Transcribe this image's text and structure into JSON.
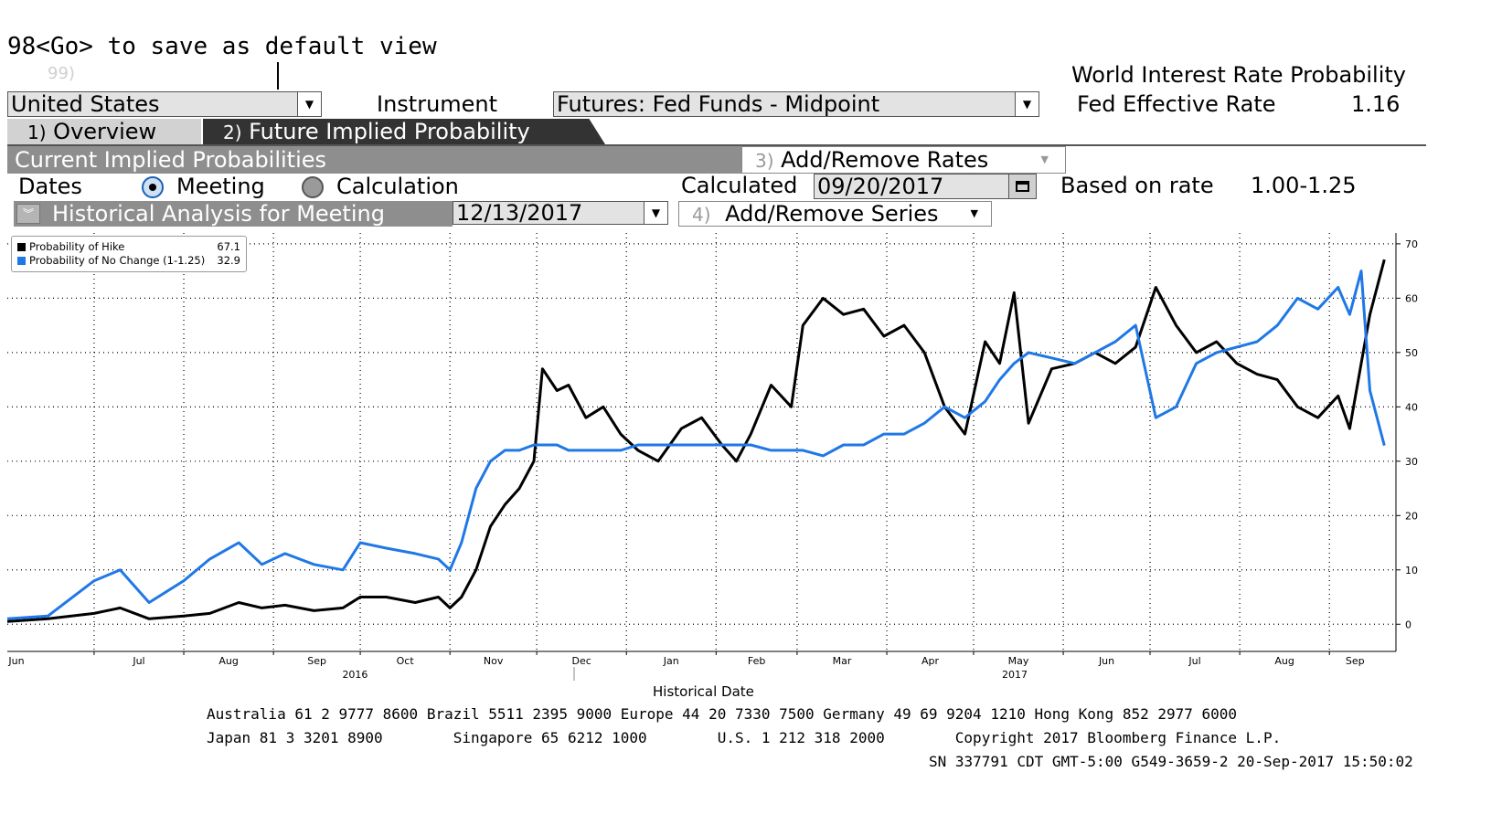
{
  "header": {
    "command_hint": "98<Go> to save as default view",
    "command_num": "99)",
    "title": "World Interest Rate Probability",
    "fed_rate_label": "Fed Effective Rate",
    "fed_rate_value": "1.16"
  },
  "selectors": {
    "country": "United States",
    "instrument_label": "Instrument",
    "instrument": "Futures: Fed Funds - Midpoint"
  },
  "tabs": [
    {
      "num": "1)",
      "label": "Overview"
    },
    {
      "num": "2)",
      "label": "Future Implied Probability"
    }
  ],
  "section": {
    "title": "Current Implied Probabilities",
    "add_rates_num": "3)",
    "add_rates_label": "Add/Remove Rates",
    "dates_label": "Dates",
    "radio_meeting": "Meeting",
    "radio_calculation": "Calculation",
    "calculated_label": "Calculated",
    "calculated_date": "09/20/2017",
    "based_on_label": "Based on rate",
    "based_on_value": "1.00-1.25"
  },
  "historical": {
    "title": "Historical Analysis for Meeting",
    "meeting_date": "12/13/2017",
    "add_series_num": "4)",
    "add_series_label": "Add/Remove Series"
  },
  "colors": {
    "hike": "#000000",
    "no_change": "#1f78e6",
    "bar_grey": "#8e8e8e",
    "tab_dark": "#333333"
  },
  "chart_data": {
    "type": "line",
    "xlabel": "Historical Date",
    "ylim": [
      -5,
      72
    ],
    "y_ticks": [
      0,
      10,
      20,
      30,
      40,
      50,
      60,
      70
    ],
    "x_month_labels": [
      "Jun",
      "Jul",
      "Aug",
      "Sep",
      "Oct",
      "Nov",
      "Dec",
      "Jan",
      "Feb",
      "Mar",
      "Apr",
      "May",
      "Jun",
      "Jul",
      "Aug",
      "Sep"
    ],
    "x_year_labels": [
      "2016",
      "2017"
    ],
    "grid": true,
    "legend_position": "top-left",
    "series": [
      {
        "name": "Probability of Hike",
        "last": "67.1",
        "color": "#000000",
        "x": [
          "2016-06-01",
          "2016-06-15",
          "2016-07-01",
          "2016-07-10",
          "2016-07-20",
          "2016-08-01",
          "2016-08-10",
          "2016-08-20",
          "2016-08-28",
          "2016-09-05",
          "2016-09-15",
          "2016-09-25",
          "2016-10-01",
          "2016-10-10",
          "2016-10-20",
          "2016-10-28",
          "2016-11-01",
          "2016-11-05",
          "2016-11-10",
          "2016-11-15",
          "2016-11-20",
          "2016-11-25",
          "2016-11-30",
          "2016-12-03",
          "2016-12-08",
          "2016-12-12",
          "2016-12-18",
          "2016-12-24",
          "2016-12-30",
          "2017-01-05",
          "2017-01-12",
          "2017-01-20",
          "2017-01-27",
          "2017-02-03",
          "2017-02-08",
          "2017-02-13",
          "2017-02-20",
          "2017-02-27",
          "2017-03-03",
          "2017-03-10",
          "2017-03-17",
          "2017-03-24",
          "2017-03-31",
          "2017-04-07",
          "2017-04-14",
          "2017-04-21",
          "2017-04-28",
          "2017-05-05",
          "2017-05-10",
          "2017-05-15",
          "2017-05-20",
          "2017-05-28",
          "2017-06-05",
          "2017-06-12",
          "2017-06-19",
          "2017-06-26",
          "2017-07-03",
          "2017-07-10",
          "2017-07-17",
          "2017-07-24",
          "2017-07-31",
          "2017-08-07",
          "2017-08-14",
          "2017-08-21",
          "2017-08-28",
          "2017-09-04",
          "2017-09-08",
          "2017-09-12",
          "2017-09-15",
          "2017-09-20"
        ],
        "values": [
          0.5,
          1,
          2,
          3,
          1,
          1.5,
          2,
          4,
          3,
          3.5,
          2.5,
          3,
          5,
          5,
          4,
          5,
          3,
          5,
          10,
          18,
          22,
          25,
          30,
          47,
          43,
          44,
          38,
          40,
          35,
          32,
          30,
          36,
          38,
          33,
          30,
          35,
          44,
          40,
          55,
          60,
          57,
          58,
          53,
          55,
          50,
          40,
          35,
          52,
          48,
          61,
          37,
          47,
          48,
          50,
          48,
          51,
          62,
          55,
          50,
          52,
          48,
          46,
          45,
          40,
          38,
          42,
          36,
          48,
          57,
          67.1
        ]
      },
      {
        "name": "Probability of No Change (1-1.25)",
        "last": "32.9",
        "color": "#1f78e6",
        "x": [
          "2016-06-01",
          "2016-06-15",
          "2016-07-01",
          "2016-07-10",
          "2016-07-20",
          "2016-08-01",
          "2016-08-10",
          "2016-08-20",
          "2016-08-28",
          "2016-09-05",
          "2016-09-15",
          "2016-09-25",
          "2016-10-01",
          "2016-10-10",
          "2016-10-20",
          "2016-10-28",
          "2016-11-01",
          "2016-11-05",
          "2016-11-10",
          "2016-11-15",
          "2016-11-20",
          "2016-11-25",
          "2016-11-30",
          "2016-12-03",
          "2016-12-08",
          "2016-12-12",
          "2016-12-18",
          "2016-12-24",
          "2016-12-30",
          "2017-01-05",
          "2017-01-12",
          "2017-01-20",
          "2017-01-27",
          "2017-02-03",
          "2017-02-08",
          "2017-02-13",
          "2017-02-20",
          "2017-02-27",
          "2017-03-03",
          "2017-03-10",
          "2017-03-17",
          "2017-03-24",
          "2017-03-31",
          "2017-04-07",
          "2017-04-14",
          "2017-04-21",
          "2017-04-28",
          "2017-05-05",
          "2017-05-10",
          "2017-05-15",
          "2017-05-20",
          "2017-05-28",
          "2017-06-05",
          "2017-06-12",
          "2017-06-19",
          "2017-06-26",
          "2017-07-03",
          "2017-07-10",
          "2017-07-17",
          "2017-07-24",
          "2017-07-31",
          "2017-08-07",
          "2017-08-14",
          "2017-08-21",
          "2017-08-28",
          "2017-09-04",
          "2017-09-08",
          "2017-09-12",
          "2017-09-15",
          "2017-09-20"
        ],
        "values": [
          1,
          1.5,
          8,
          10,
          4,
          8,
          12,
          15,
          11,
          13,
          11,
          10,
          15,
          14,
          13,
          12,
          10,
          15,
          25,
          30,
          32,
          32,
          33,
          33,
          33,
          32,
          32,
          32,
          32,
          33,
          33,
          33,
          33,
          33,
          33,
          33,
          32,
          32,
          32,
          31,
          33,
          33,
          35,
          35,
          37,
          40,
          38,
          41,
          45,
          48,
          50,
          49,
          48,
          50,
          52,
          55,
          38,
          40,
          48,
          50,
          51,
          52,
          55,
          60,
          58,
          62,
          57,
          65,
          43,
          32.9
        ]
      }
    ]
  },
  "footer": {
    "line1": "Australia 61 2 9777 8600 Brazil 5511 2395 9000 Europe 44 20 7330 7500 Germany 49 69 9204 1210 Hong Kong 852 2977 6000",
    "line2": "Japan 81 3 3201 8900        Singapore 65 6212 1000        U.S. 1 212 318 2000        Copyright 2017 Bloomberg Finance L.P.",
    "line3": "SN 337791 CDT  GMT-5:00 G549-3659-2 20-Sep-2017 15:50:02"
  }
}
